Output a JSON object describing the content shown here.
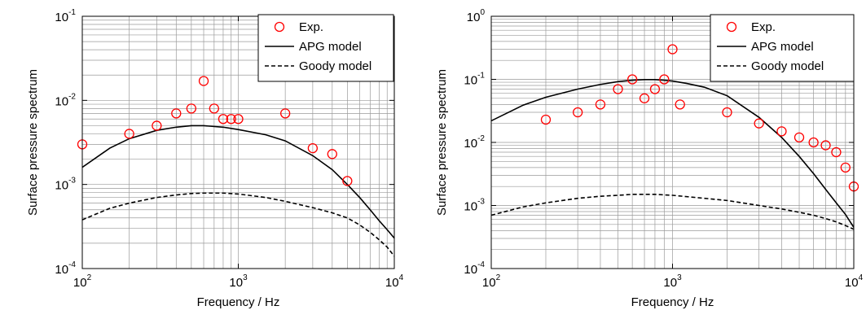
{
  "chart_data": [
    {
      "type": "scatter",
      "xlabel": "Frequency / Hz",
      "ylabel": "Surface pressure spectrum",
      "xscale": "log",
      "yscale": "log",
      "xlim": [
        100,
        10000
      ],
      "ylim": [
        0.0001,
        0.1
      ],
      "grid": true,
      "legend_position": "top-right",
      "x_tick_labels": [
        {
          "base": "10",
          "exp": "2"
        },
        {
          "base": "10",
          "exp": "3"
        },
        {
          "base": "10",
          "exp": "4"
        }
      ],
      "y_tick_labels": [
        {
          "base": "10",
          "exp": "-4"
        },
        {
          "base": "10",
          "exp": "-3"
        },
        {
          "base": "10",
          "exp": "-2"
        },
        {
          "base": "10",
          "exp": "-1"
        }
      ],
      "series": [
        {
          "name": "Exp.",
          "style": "markers",
          "color": "#ff0000",
          "x": [
            100,
            200,
            300,
            400,
            500,
            600,
            700,
            800,
            900,
            1000,
            2000,
            3000,
            4000,
            5000
          ],
          "y": [
            0.003,
            0.004,
            0.005,
            0.007,
            0.008,
            0.017,
            0.008,
            0.006,
            0.006,
            0.006,
            0.007,
            0.0027,
            0.0023,
            0.0011
          ]
        },
        {
          "name": "APG model",
          "style": "solid",
          "color": "#000000",
          "x": [
            100,
            150,
            200,
            300,
            400,
            500,
            600,
            800,
            1000,
            1500,
            2000,
            3000,
            4000,
            5000,
            6000,
            7000,
            8000,
            9000,
            10000
          ],
          "y": [
            0.0016,
            0.0027,
            0.0035,
            0.0044,
            0.0048,
            0.005,
            0.005,
            0.0048,
            0.0045,
            0.0039,
            0.0033,
            0.0022,
            0.0015,
            0.001,
            0.0007,
            0.0005,
            0.00037,
            0.00029,
            0.00023
          ]
        },
        {
          "name": "Goody model",
          "style": "dashed",
          "color": "#000000",
          "x": [
            100,
            150,
            200,
            300,
            400,
            500,
            600,
            800,
            1000,
            1500,
            2000,
            3000,
            4000,
            5000,
            6000,
            7000,
            8000,
            9000,
            10000
          ],
          "y": [
            0.00038,
            0.00052,
            0.0006,
            0.0007,
            0.00075,
            0.00078,
            0.00079,
            0.00079,
            0.00077,
            0.0007,
            0.00063,
            0.00053,
            0.00046,
            0.0004,
            0.00033,
            0.00027,
            0.00022,
            0.00018,
            0.00014
          ]
        }
      ]
    },
    {
      "type": "scatter",
      "xlabel": "Frequency / Hz",
      "ylabel": "Surface pressure spectrum",
      "xscale": "log",
      "yscale": "log",
      "xlim": [
        100,
        10000
      ],
      "ylim": [
        0.0001,
        1
      ],
      "grid": true,
      "legend_position": "top-right",
      "x_tick_labels": [
        {
          "base": "10",
          "exp": "2"
        },
        {
          "base": "10",
          "exp": "3"
        },
        {
          "base": "10",
          "exp": "4"
        }
      ],
      "y_tick_labels": [
        {
          "base": "10",
          "exp": "-4"
        },
        {
          "base": "10",
          "exp": "-3"
        },
        {
          "base": "10",
          "exp": "-2"
        },
        {
          "base": "10",
          "exp": "-1"
        },
        {
          "base": "10",
          "exp": "0"
        }
      ],
      "series": [
        {
          "name": "Exp.",
          "style": "markers",
          "color": "#ff0000",
          "x": [
            200,
            300,
            400,
            500,
            600,
            700,
            800,
            900,
            1000,
            1100,
            2000,
            3000,
            4000,
            5000,
            6000,
            7000,
            8000,
            9000,
            10000
          ],
          "y": [
            0.023,
            0.03,
            0.04,
            0.07,
            0.1,
            0.05,
            0.07,
            0.1,
            0.3,
            0.04,
            0.03,
            0.02,
            0.015,
            0.012,
            0.01,
            0.009,
            0.007,
            0.004,
            0.002
          ]
        },
        {
          "name": "APG model",
          "style": "solid",
          "color": "#000000",
          "x": [
            100,
            150,
            200,
            300,
            400,
            500,
            600,
            700,
            800,
            900,
            1000,
            1200,
            1500,
            2000,
            3000,
            4000,
            5000,
            6000,
            7000,
            8000,
            9000,
            10000
          ],
          "y": [
            0.022,
            0.039,
            0.052,
            0.07,
            0.083,
            0.092,
            0.097,
            0.099,
            0.099,
            0.097,
            0.094,
            0.086,
            0.075,
            0.055,
            0.025,
            0.012,
            0.006,
            0.0032,
            0.0018,
            0.0011,
            0.00072,
            0.00045
          ]
        },
        {
          "name": "Goody model",
          "style": "dashed",
          "color": "#000000",
          "x": [
            100,
            150,
            200,
            300,
            400,
            500,
            600,
            700,
            800,
            1000,
            1500,
            2000,
            3000,
            4000,
            5000,
            6000,
            7000,
            8000,
            9000,
            10000
          ],
          "y": [
            0.0007,
            0.00095,
            0.0011,
            0.0013,
            0.0014,
            0.00145,
            0.0015,
            0.0015,
            0.0015,
            0.00145,
            0.0013,
            0.0012,
            0.001,
            0.00088,
            0.00078,
            0.0007,
            0.00062,
            0.00055,
            0.00048,
            0.00042
          ]
        }
      ]
    }
  ]
}
